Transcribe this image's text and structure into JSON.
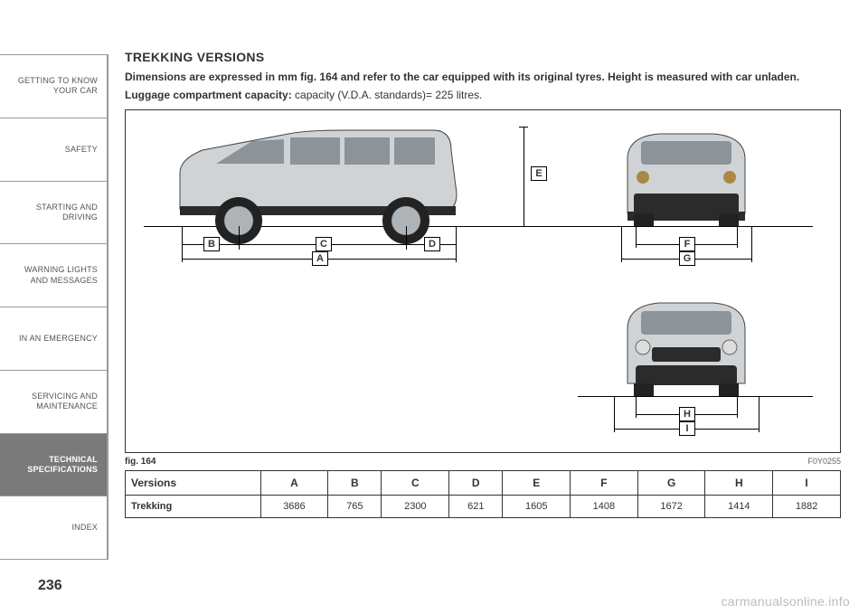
{
  "sidebar": {
    "items": [
      {
        "label": "GETTING TO KNOW\nYOUR CAR"
      },
      {
        "label": "SAFETY"
      },
      {
        "label": "STARTING AND\nDRIVING"
      },
      {
        "label": "WARNING LIGHTS\nAND MESSAGES"
      },
      {
        "label": "IN AN EMERGENCY"
      },
      {
        "label": "SERVICING AND\nMAINTENANCE"
      },
      {
        "label": "TECHNICAL\nSPECIFICATIONS"
      },
      {
        "label": "INDEX"
      }
    ],
    "active_index": 6
  },
  "heading": "TREKKING VERSIONS",
  "para1": "Dimensions are expressed in mm fig. 164 and refer to the car equipped with its original tyres. Height is measured with car unladen.",
  "para2_prefix": "Luggage compartment capacity: ",
  "para2_rest": "capacity (V.D.A. standards)= 225 litres.",
  "fig_caption": "fig. 164",
  "fig_id": "F0Y0255",
  "dim_labels": [
    "A",
    "B",
    "C",
    "D",
    "E",
    "F",
    "G",
    "H",
    "I"
  ],
  "table": {
    "header_first": "Versions",
    "columns": [
      "A",
      "B",
      "C",
      "D",
      "E",
      "F",
      "G",
      "H",
      "I"
    ],
    "row_label": "Trekking",
    "values": [
      "3686",
      "765",
      "2300",
      "621",
      "1605",
      "1408",
      "1672",
      "1414",
      "1882"
    ]
  },
  "page_number": "236",
  "watermark": "carmanualsonline.info",
  "style": {
    "colors": {
      "text": "#333333",
      "sidebar_active_bg": "#7a7a7a",
      "sidebar_active_fg": "#ffffff",
      "border": "#333333",
      "car_body": "#cfd3d6",
      "car_glass": "#8c949a",
      "car_dark": "#2b2b2b",
      "watermark": "#bdbdbd"
    },
    "fonts": {
      "heading_size_pt": 14,
      "para_size_pt": 12,
      "sidebar_size_pt": 9,
      "table_size_pt": 11
    }
  }
}
